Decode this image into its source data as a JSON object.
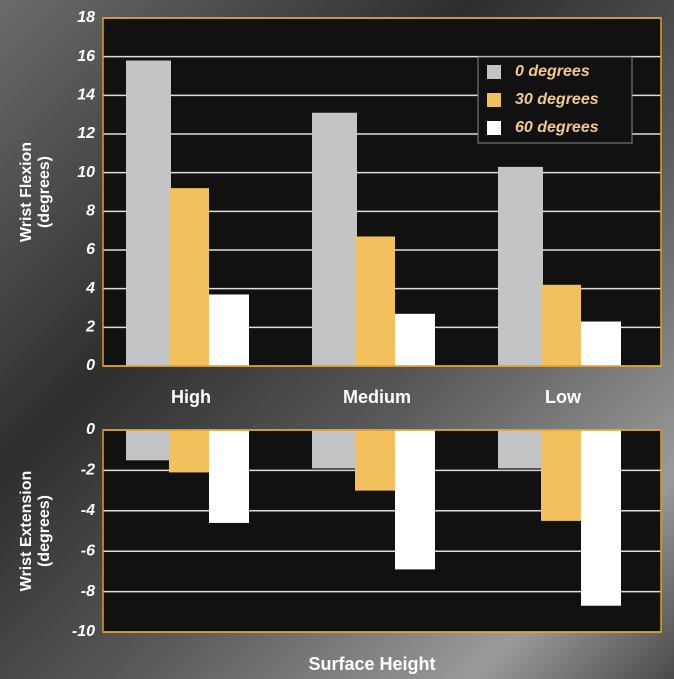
{
  "chart_data": [
    {
      "type": "bar",
      "ylabel": [
        "Wrist Flexion",
        "(degrees)"
      ],
      "categories": [
        "High",
        "Medium",
        "Low"
      ],
      "series": [
        {
          "name": "0 degrees",
          "color": "#c3c4c6",
          "values": [
            15.8,
            13.1,
            10.3
          ]
        },
        {
          "name": "30 degrees",
          "color": "#f2c15e",
          "values": [
            9.2,
            6.7,
            4.2
          ]
        },
        {
          "name": "60 degrees",
          "color": "#ffffff",
          "values": [
            3.7,
            2.7,
            2.3
          ]
        }
      ],
      "ylim": [
        0,
        18
      ],
      "yticks": [
        0,
        2,
        4,
        6,
        8,
        10,
        12,
        14,
        16,
        18
      ],
      "grid": true,
      "legend": "top-right"
    },
    {
      "type": "bar",
      "ylabel": [
        "Wrist Extension",
        "(degrees)"
      ],
      "xlabel": "Surface Height",
      "series": [
        {
          "color": "#c3c4c6",
          "values": [
            -1.5,
            -1.9,
            -1.9
          ]
        },
        {
          "color": "#f2c15e",
          "values": [
            -2.1,
            -3.0,
            -4.5
          ]
        },
        {
          "color": "#ffffff",
          "values": [
            -4.6,
            -6.9,
            -8.7
          ]
        }
      ],
      "ylim": [
        -10,
        0
      ],
      "yticks": [
        -10,
        -8,
        -6,
        -4,
        -2,
        0
      ],
      "grid": true
    }
  ]
}
